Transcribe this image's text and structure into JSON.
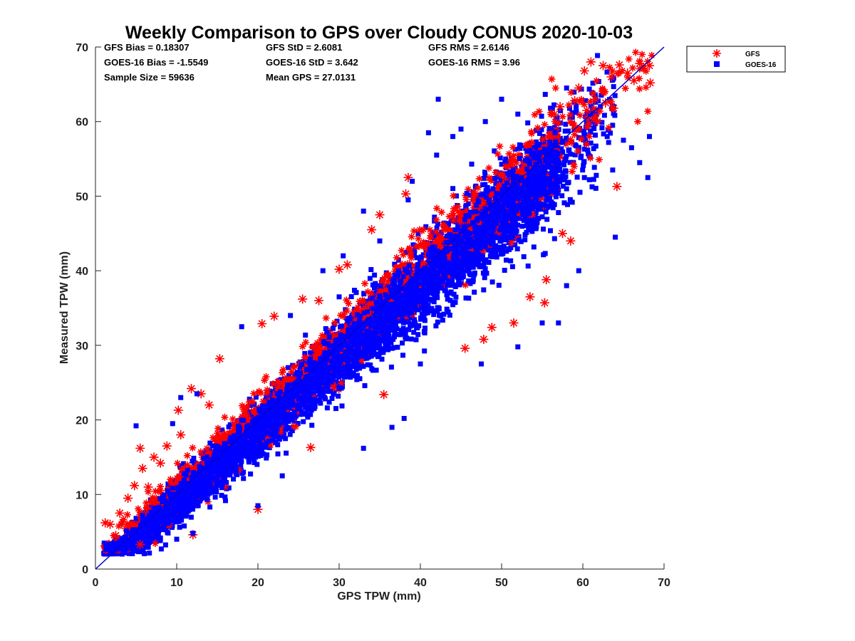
{
  "chart_data": {
    "type": "scatter",
    "title": "Weekly Comparison to GPS over Cloudy CONUS 2020-10-03",
    "xlabel": "GPS TPW (mm)",
    "ylabel": "Measured TPW (mm)",
    "xlim": [
      0,
      70
    ],
    "ylim": [
      0,
      70
    ],
    "xticks": [
      "0",
      "10",
      "20",
      "30",
      "40",
      "50",
      "60",
      "70"
    ],
    "yticks": [
      "0",
      "10",
      "20",
      "30",
      "40",
      "50",
      "60",
      "70"
    ],
    "grid": false,
    "legend_position": "outside-top-right",
    "reference_line": {
      "x": [
        0,
        70
      ],
      "y": [
        0,
        70
      ],
      "color": "#0000cc"
    },
    "stats": [
      [
        "GFS Bias = 0.18307",
        "GFS StD = 2.6081",
        "GFS RMS = 2.6146"
      ],
      [
        "GOES-16 Bias = -1.5549",
        "GOES-16 StD = 3.642",
        "GOES-16 RMS = 3.96"
      ],
      [
        "Sample Size = 59636",
        "Mean GPS = 27.0131",
        ""
      ]
    ],
    "series": [
      {
        "name": "GFS",
        "marker": "asterisk",
        "color": "#ff0000",
        "sample_size": 59636,
        "bias": 0.18307,
        "std": 2.6081,
        "x_range": [
          1,
          69
        ],
        "outliers": [
          [
            1.2,
            6.2
          ],
          [
            1.8,
            6.0
          ],
          [
            2.5,
            4.5
          ],
          [
            3.0,
            7.5
          ],
          [
            4.0,
            9.5
          ],
          [
            4.8,
            11.2
          ],
          [
            5.5,
            16.2
          ],
          [
            5.8,
            13.5
          ],
          [
            6.5,
            11.0
          ],
          [
            7.2,
            15.0
          ],
          [
            8.0,
            14.2
          ],
          [
            8.8,
            16.5
          ],
          [
            10.2,
            21.3
          ],
          [
            10.5,
            18.0
          ],
          [
            11.8,
            24.2
          ],
          [
            13.0,
            23.5
          ],
          [
            14.0,
            22.0
          ],
          [
            15.3,
            28.2
          ],
          [
            20.5,
            32.9
          ],
          [
            22.0,
            33.9
          ],
          [
            25.5,
            36.2
          ],
          [
            27.5,
            36.0
          ],
          [
            30.0,
            40.2
          ],
          [
            31.0,
            40.8
          ],
          [
            34.0,
            45.5
          ],
          [
            35.0,
            47.5
          ],
          [
            38.2,
            50.3
          ],
          [
            38.5,
            52.5
          ],
          [
            5.5,
            3.3
          ],
          [
            12.0,
            4.6
          ],
          [
            20.0,
            8.0
          ],
          [
            26.5,
            16.3
          ],
          [
            35.5,
            23.4
          ],
          [
            45.5,
            29.6
          ],
          [
            47.8,
            30.8
          ],
          [
            48.8,
            32.4
          ],
          [
            51.5,
            33.0
          ],
          [
            53.5,
            36.5
          ],
          [
            55.3,
            35.7
          ],
          [
            55.5,
            38.8
          ],
          [
            57.5,
            45.0
          ],
          [
            58.5,
            44.0
          ],
          [
            64.2,
            51.3
          ],
          [
            56.5,
            61.0
          ],
          [
            57.2,
            62.0
          ],
          [
            59.5,
            64.5
          ],
          [
            60.2,
            66.8
          ],
          [
            61.0,
            68.0
          ],
          [
            62.5,
            67.5
          ],
          [
            63.5,
            66.0
          ],
          [
            64.5,
            67.6
          ],
          [
            65.5,
            66.5
          ],
          [
            66.3,
            65.5
          ],
          [
            67.0,
            67.8
          ],
          [
            68.2,
            67.5
          ],
          [
            68.3,
            65.2
          ],
          [
            61.5,
            63.0
          ],
          [
            62.8,
            62.5
          ],
          [
            63.8,
            61.8
          ],
          [
            60.5,
            61.5
          ],
          [
            59.0,
            62.8
          ],
          [
            61.8,
            60.0
          ]
        ]
      },
      {
        "name": "GOES-16",
        "marker": "square",
        "color": "#0000ff",
        "sample_size": 59636,
        "bias": -1.5549,
        "std": 3.642,
        "x_range": [
          1,
          69
        ],
        "outliers": [
          [
            5.0,
            19.2
          ],
          [
            9.5,
            19.5
          ],
          [
            10.5,
            23.0
          ],
          [
            12.5,
            23.5
          ],
          [
            18.0,
            32.5
          ],
          [
            30.0,
            36.5
          ],
          [
            33.0,
            48.0
          ],
          [
            38.5,
            49.5
          ],
          [
            41.0,
            58.5
          ],
          [
            42.0,
            55.5
          ],
          [
            44.0,
            58.0
          ],
          [
            45.0,
            59.0
          ],
          [
            48.0,
            60.0
          ],
          [
            50.0,
            63.0
          ],
          [
            52.0,
            61.0
          ],
          [
            58.0,
            64.5
          ],
          [
            63.0,
            58.0
          ],
          [
            65.0,
            57.5
          ],
          [
            66.0,
            56.5
          ],
          [
            67.0,
            54.5
          ],
          [
            68.0,
            52.5
          ],
          [
            68.2,
            58.0
          ],
          [
            64.0,
            44.5
          ],
          [
            59.5,
            40.0
          ],
          [
            58.0,
            38.0
          ],
          [
            57.0,
            33.0
          ],
          [
            55.0,
            33.0
          ],
          [
            52.0,
            29.8
          ],
          [
            47.5,
            27.5
          ],
          [
            40.0,
            27.5
          ],
          [
            38.0,
            20.2
          ],
          [
            36.5,
            19.0
          ],
          [
            33.0,
            16.2
          ],
          [
            23.0,
            12.5
          ],
          [
            20.0,
            8.5
          ],
          [
            12.0,
            4.8
          ],
          [
            10.0,
            4.0
          ],
          [
            2.0,
            2.2
          ],
          [
            3.0,
            3.0
          ],
          [
            42.2,
            63.0
          ],
          [
            39.0,
            52.0
          ],
          [
            35.0,
            44.0
          ],
          [
            28.0,
            40.0
          ],
          [
            24.0,
            34.0
          ],
          [
            30.5,
            42.0
          ]
        ]
      }
    ]
  }
}
